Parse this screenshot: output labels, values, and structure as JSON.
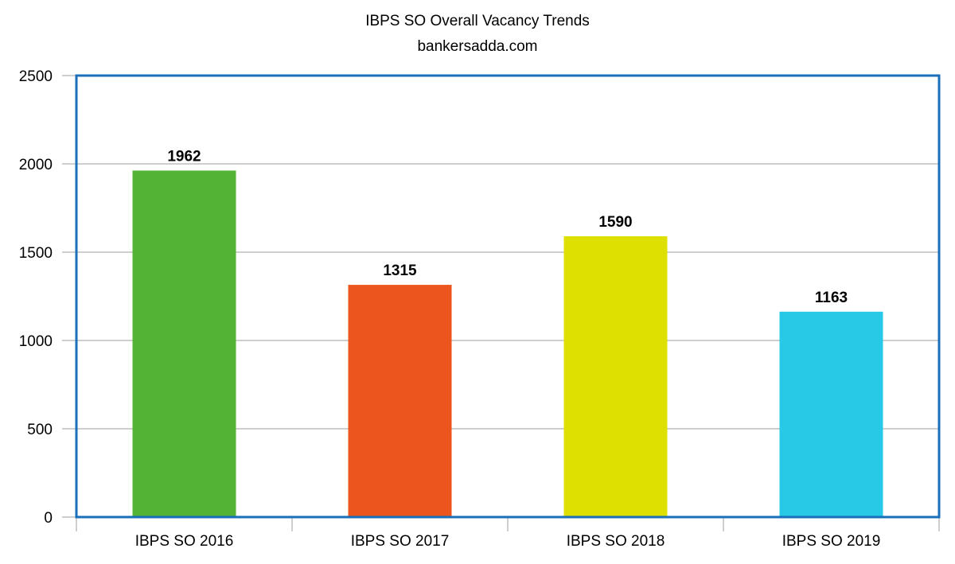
{
  "chart_data": {
    "type": "bar",
    "title": "IBPS SO Overall Vacancy Trends",
    "subtitle": "bankersadda.com",
    "categories": [
      "IBPS SO 2016",
      "IBPS SO 2017",
      "IBPS SO 2018",
      "IBPS SO 2019"
    ],
    "values": [
      1962,
      1315,
      1590,
      1163
    ],
    "colors": [
      "#52b335",
      "#ec561e",
      "#dde000",
      "#27c9e6"
    ],
    "ylim": [
      0,
      2500
    ],
    "yticks": [
      0,
      500,
      1000,
      1500,
      2000,
      2500
    ],
    "grid": true,
    "legend": "none",
    "xlabel": "",
    "ylabel": "",
    "frame_color": "#1a6fba"
  }
}
